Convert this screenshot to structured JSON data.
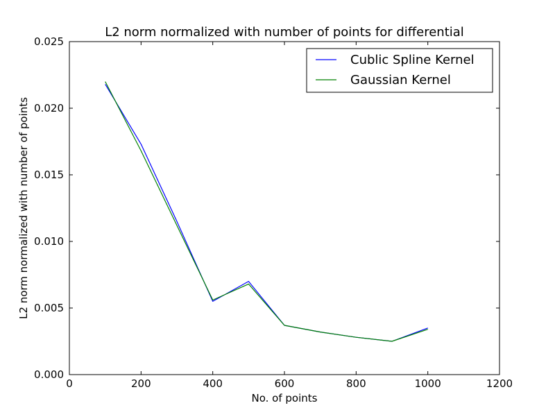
{
  "chart_data": {
    "type": "line",
    "title": "L2 norm normalized with number of points for differential",
    "xlabel": "No. of points",
    "ylabel": "L2 norm normalized with number of points",
    "xlim": [
      0,
      1200
    ],
    "ylim": [
      0,
      0.025
    ],
    "xticks": [
      0,
      200,
      400,
      600,
      800,
      1000,
      1200
    ],
    "xtick_labels": [
      "0",
      "200",
      "400",
      "600",
      "800",
      "1000",
      "1200"
    ],
    "yticks": [
      0,
      0.005,
      0.01,
      0.015,
      0.02,
      0.025
    ],
    "ytick_labels": [
      "0.000",
      "0.005",
      "0.010",
      "0.015",
      "0.020",
      "0.025"
    ],
    "grid": false,
    "legend_position": "top-right",
    "x": [
      100,
      200,
      300,
      400,
      500,
      600,
      700,
      800,
      900,
      1000
    ],
    "series": [
      {
        "name": "Cublic Spline Kernel",
        "color": "#0000ff",
        "values": [
          0.0218,
          0.0173,
          0.0115,
          0.0055,
          0.007,
          0.0037,
          0.0032,
          0.0028,
          0.0025,
          0.0035
        ]
      },
      {
        "name": "Gaussian Kernel",
        "color": "#008000",
        "values": [
          0.022,
          0.0168,
          0.0112,
          0.0056,
          0.0068,
          0.0037,
          0.0032,
          0.0028,
          0.0025,
          0.0034
        ]
      }
    ]
  }
}
